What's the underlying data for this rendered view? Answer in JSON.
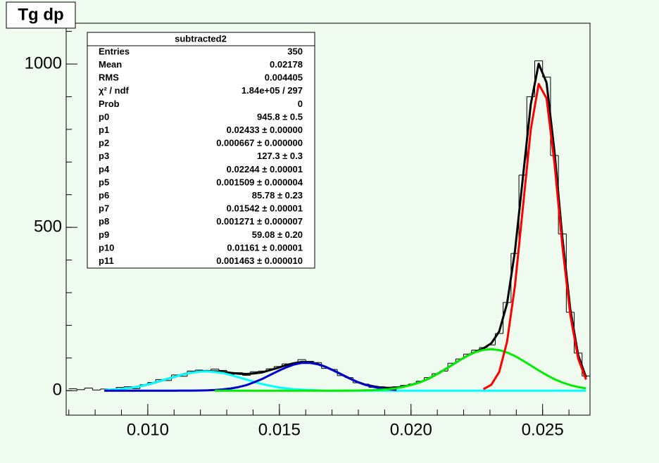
{
  "chart_data": {
    "type": "histogram",
    "title": "Tg dp",
    "bins": [
      0.007,
      0.0073,
      0.0076,
      0.0079,
      0.0082,
      0.0085,
      0.0088,
      0.0091,
      0.0094,
      0.0097,
      0.01,
      0.0103,
      0.0106,
      0.0109,
      0.0112,
      0.0115,
      0.0118,
      0.0121,
      0.0124,
      0.0127,
      0.013,
      0.0133,
      0.0136,
      0.0139,
      0.0142,
      0.0145,
      0.0148,
      0.0151,
      0.0154,
      0.0157,
      0.016,
      0.0163,
      0.0166,
      0.0169,
      0.0172,
      0.0175,
      0.0178,
      0.0181,
      0.0184,
      0.0187,
      0.019,
      0.0193,
      0.0196,
      0.0199,
      0.0202,
      0.0205,
      0.0208,
      0.0211,
      0.0214,
      0.0217,
      0.022,
      0.0223,
      0.0226,
      0.0229,
      0.0232,
      0.0235,
      0.0238,
      0.0241,
      0.0244,
      0.0247,
      0.025,
      0.0253,
      0.0256,
      0.0259,
      0.0262,
      0.0265,
      0.0268
    ],
    "values": [
      6,
      3,
      8,
      2,
      5,
      4,
      10,
      12,
      6,
      18,
      25,
      34,
      31,
      48,
      44,
      60,
      63,
      58,
      66,
      62,
      50,
      55,
      47,
      58,
      60,
      67,
      74,
      82,
      80,
      95,
      90,
      86,
      68,
      65,
      46,
      40,
      24,
      20,
      10,
      12,
      8,
      12,
      16,
      20,
      29,
      40,
      52,
      60,
      84,
      97,
      112,
      124,
      132,
      140,
      175,
      270,
      420,
      660,
      900,
      1010,
      960,
      720,
      480,
      240,
      115,
      45
    ],
    "color": "#000000",
    "xlim": [
      0.0069,
      0.0268
    ],
    "ylim": [
      -75,
      1125
    ],
    "xticks": [
      {
        "value": 0.01,
        "label": "0.010"
      },
      {
        "value": 0.015,
        "label": "0.015"
      },
      {
        "value": 0.02,
        "label": "0.020"
      },
      {
        "value": 0.025,
        "label": "0.025"
      }
    ],
    "yticks": [
      0,
      500,
      1000
    ],
    "curves": {
      "x": [
        0.00835,
        0.00865,
        0.00895,
        0.00925,
        0.00955,
        0.00985,
        0.01015,
        0.01045,
        0.01075,
        0.01105,
        0.01135,
        0.01165,
        0.01195,
        0.01225,
        0.01255,
        0.01285,
        0.01315,
        0.01345,
        0.01375,
        0.01405,
        0.01435,
        0.01465,
        0.01495,
        0.01525,
        0.01555,
        0.01585,
        0.01615,
        0.01645,
        0.01675,
        0.01705,
        0.01735,
        0.01765,
        0.01795,
        0.01825,
        0.01855,
        0.01885,
        0.01915,
        0.01945,
        0.01975,
        0.02005,
        0.02035,
        0.02065,
        0.02095,
        0.02125,
        0.02155,
        0.02185,
        0.02215,
        0.02245,
        0.02275,
        0.02305,
        0.02335,
        0.02365,
        0.02395,
        0.02425,
        0.02455,
        0.02485,
        0.02515,
        0.02545,
        0.02575,
        0.02605,
        0.02635,
        0.02665
      ],
      "series": [
        {
          "color": "#000000",
          "values": [
            1.8,
            3.1,
            5,
            7.6,
            11,
            16,
            22,
            29,
            36,
            43,
            50.1,
            55.2,
            58.5,
            60,
            59,
            57.9,
            54.7,
            52,
            51,
            53,
            56,
            63,
            70,
            78,
            84,
            88,
            87,
            82,
            73,
            62,
            50.1,
            38.2,
            27.4,
            18.8,
            13.5,
            9.7,
            8.6,
            9.5,
            13,
            18.6,
            26,
            36,
            49,
            63,
            78,
            93,
            107.2,
            118.9,
            129.5,
            145,
            181,
            267,
            427,
            653,
            877,
            1001,
            943,
            733,
            470,
            249,
            109,
            41
          ]
        },
        {
          "color": "#00ffff",
          "values": [
            1.8,
            3.1,
            5,
            7.6,
            11,
            16,
            22,
            29,
            36,
            43,
            50,
            55,
            58,
            59,
            57,
            54,
            48,
            41,
            34,
            27,
            20,
            15,
            10,
            7,
            4,
            3,
            2,
            1,
            0,
            0,
            0,
            0,
            0,
            0,
            0,
            0,
            0,
            0,
            0,
            0,
            0,
            0,
            0,
            0,
            0,
            0,
            0,
            0,
            0,
            0,
            0,
            0,
            0,
            0,
            0,
            0,
            0,
            0,
            0,
            0,
            0,
            0
          ]
        },
        {
          "color": "#0000cc",
          "values": [
            0,
            0,
            0,
            0,
            0,
            0,
            0,
            0,
            0,
            0,
            0.1,
            0.2,
            0.5,
            1,
            2,
            3.9,
            6.7,
            11,
            17,
            26,
            36,
            48,
            60,
            71,
            80,
            85,
            85,
            81,
            73,
            62,
            50,
            38,
            27,
            18,
            12,
            7,
            4,
            2,
            null,
            null,
            null,
            null,
            null,
            null,
            null,
            null,
            null,
            null,
            null,
            null,
            null,
            null,
            null,
            null,
            null,
            null,
            null,
            null,
            null,
            null,
            null,
            null
          ]
        },
        {
          "color": "#00ee00",
          "values": [
            null,
            null,
            null,
            null,
            null,
            null,
            null,
            null,
            null,
            null,
            null,
            null,
            null,
            null,
            0,
            0,
            0,
            0,
            0,
            0,
            0,
            0,
            0,
            0,
            0,
            0,
            0,
            0,
            0,
            0,
            0.1,
            0.2,
            0.4,
            0.8,
            1.5,
            2.7,
            4.6,
            7.5,
            12,
            18,
            26,
            36,
            49,
            63,
            78,
            93,
            107,
            118,
            125,
            127,
            124,
            117,
            106,
            92,
            77,
            62,
            48,
            35,
            25,
            17,
            11,
            7
          ]
        },
        {
          "color": "#ff0000",
          "values": [
            null,
            null,
            null,
            null,
            null,
            null,
            null,
            null,
            null,
            null,
            null,
            null,
            null,
            null,
            null,
            null,
            null,
            null,
            null,
            null,
            null,
            null,
            null,
            null,
            null,
            null,
            null,
            null,
            null,
            null,
            null,
            null,
            null,
            null,
            null,
            null,
            null,
            null,
            null,
            null,
            null,
            null,
            null,
            null,
            null,
            null,
            null,
            null,
            4.5,
            18,
            57,
            150,
            321,
            561,
            800,
            939,
            895,
            698,
            445,
            232,
            98,
            34
          ]
        }
      ]
    }
  },
  "stats": {
    "title": "subtracted2",
    "rows": [
      {
        "label": "Entries",
        "value": "350"
      },
      {
        "label": "Mean",
        "value": "0.02178"
      },
      {
        "label": "RMS",
        "value": "0.004405"
      },
      {
        "label": "χ² / ndf",
        "value": "1.84e+05 / 297"
      },
      {
        "label": "Prob",
        "value": "0"
      },
      {
        "label": "p0",
        "value": "945.8 ± 0.5"
      },
      {
        "label": "p1",
        "value": "0.02433 ± 0.00000"
      },
      {
        "label": "p2",
        "value": "0.000667 ± 0.000000"
      },
      {
        "label": "p3",
        "value": "127.3 ± 0.3"
      },
      {
        "label": "p4",
        "value": "0.02244 ± 0.00001"
      },
      {
        "label": "p5",
        "value": "0.001509 ± 0.000004"
      },
      {
        "label": "p6",
        "value": "85.78 ± 0.23"
      },
      {
        "label": "p7",
        "value": "0.01542 ± 0.00001"
      },
      {
        "label": "p8",
        "value": "0.001271 ± 0.000007"
      },
      {
        "label": "p9",
        "value": "59.08 ± 0.20"
      },
      {
        "label": "p10",
        "value": "0.01161 ± 0.00001"
      },
      {
        "label": "p11",
        "value": "0.001463 ± 0.000010"
      }
    ]
  }
}
